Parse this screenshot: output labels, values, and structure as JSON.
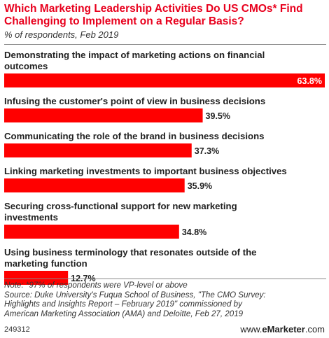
{
  "title": "Which Marketing Leadership Activities Do US CMOs* Find Challenging to Implement on a Regular Basis?",
  "subtitle": "% of respondents, Feb 2019",
  "note_lines": [
    "Note: *97% of respondents were VP-level or above",
    "Source: Duke University's Fuqua School of Business, \"The CMO Survey:",
    "Highlights and Insights Report – February 2019\" commissioned by",
    "American Marketing Association (AMA) and Deloitte, Feb 27, 2019"
  ],
  "chart_code": "249312",
  "brand": {
    "prefix": "www.",
    "name": "eMarketer",
    "suffix": ".com"
  },
  "colors": {
    "bar": "#ff0000",
    "title": "#e8001d",
    "label_inside": "#ffffff",
    "label_outside": "#222222"
  },
  "chart_data": {
    "type": "bar",
    "orientation": "horizontal",
    "title": "Which Marketing Leadership Activities Do US CMOs* Find Challenging to Implement on a Regular Basis?",
    "subtitle": "% of respondents, Feb 2019",
    "categories": [
      [
        "Demonstrating the impact of marketing actions on financial",
        "outcomes"
      ],
      [
        "Infusing the customer's point of view in business decisions"
      ],
      [
        "Communicating the role of the brand in business decisions"
      ],
      [
        "Linking marketing investments to important business objectives"
      ],
      [
        "Securing cross-functional support for new marketing",
        "investments"
      ],
      [
        "Using business terminology that resonates outside of the",
        "marketing function"
      ]
    ],
    "values": [
      63.8,
      39.5,
      37.3,
      35.9,
      34.8,
      12.7
    ],
    "value_labels": [
      "63.8%",
      "39.5%",
      "37.3%",
      "35.9%",
      "34.8%",
      "12.7%"
    ],
    "xlim": [
      0,
      63.8
    ],
    "grid": false,
    "legend": "none"
  }
}
